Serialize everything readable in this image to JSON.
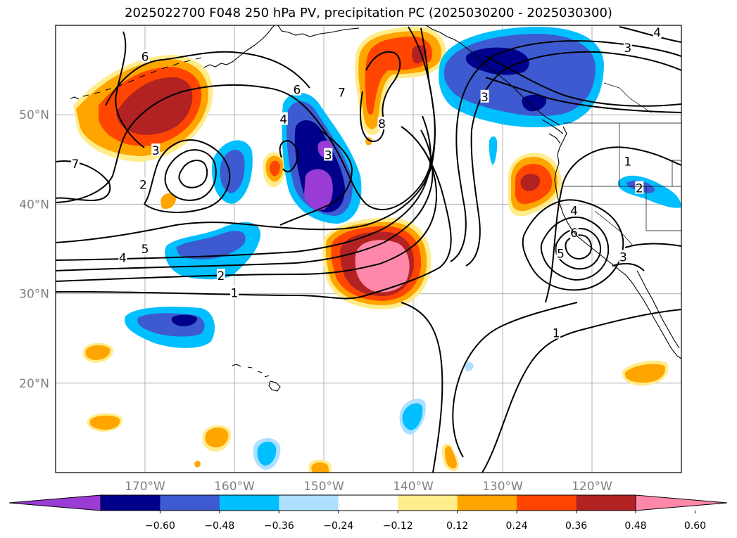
{
  "title": "2025022700 F048 250 hPa PV, precipitation PC (2025030200 - 2025030300)",
  "map": {
    "extent": {
      "lon_min": -180,
      "lon_max": -110,
      "lat_min": 10,
      "lat_max": 60
    },
    "lon_ticks": [
      {
        "value": -170,
        "label": "170°W"
      },
      {
        "value": -160,
        "label": "160°W"
      },
      {
        "value": -150,
        "label": "150°W"
      },
      {
        "value": -140,
        "label": "140°W"
      },
      {
        "value": -130,
        "label": "130°W"
      },
      {
        "value": -120,
        "label": "120°W"
      }
    ],
    "lat_ticks": [
      {
        "value": 50,
        "label": "50°N"
      },
      {
        "value": 40,
        "label": "40°N"
      },
      {
        "value": 30,
        "label": "30°N"
      },
      {
        "value": 20,
        "label": "20°N"
      }
    ]
  },
  "colorbar": {
    "colors": [
      "#9a3bd6",
      "#00008b",
      "#3d5ad0",
      "#00bfff",
      "#aee0ff",
      "#ffffff",
      "#ffec8b",
      "#ffa500",
      "#ff4500",
      "#b22222",
      "#ff88aa"
    ],
    "labels": [
      "−0.60",
      "−0.48",
      "−0.36",
      "−0.24",
      "−0.12",
      "0.12",
      "0.24",
      "0.36",
      "0.48",
      "0.60"
    ]
  },
  "pv_contour_labels": [
    {
      "text": "6",
      "lon": -170.0,
      "lat": 56.5
    },
    {
      "text": "6",
      "lon": -153.0,
      "lat": 52.8
    },
    {
      "text": "7",
      "lon": -148.0,
      "lat": 52.5
    },
    {
      "text": "4",
      "lon": -154.5,
      "lat": 49.5
    },
    {
      "text": "3",
      "lon": -168.8,
      "lat": 46.0
    },
    {
      "text": "2",
      "lon": -170.2,
      "lat": 42.2
    },
    {
      "text": "7",
      "lon": -177.8,
      "lat": 44.5
    },
    {
      "text": "3",
      "lon": -149.5,
      "lat": 45.5
    },
    {
      "text": "8",
      "lon": -143.5,
      "lat": 49.0
    },
    {
      "text": "3",
      "lon": -132.0,
      "lat": 52.0
    },
    {
      "text": "3",
      "lon": -116.0,
      "lat": 57.5
    },
    {
      "text": "4",
      "lon": -112.7,
      "lat": 59.2
    },
    {
      "text": "1",
      "lon": -116.0,
      "lat": 44.8
    },
    {
      "text": "2",
      "lon": -114.7,
      "lat": 41.8
    },
    {
      "text": "4",
      "lon": -122.0,
      "lat": 39.3
    },
    {
      "text": "6",
      "lon": -122.0,
      "lat": 36.8
    },
    {
      "text": "5",
      "lon": -123.5,
      "lat": 34.5
    },
    {
      "text": "3",
      "lon": -116.5,
      "lat": 34.1
    },
    {
      "text": "1",
      "lon": -124.0,
      "lat": 25.6
    },
    {
      "text": "5",
      "lon": -170.0,
      "lat": 35.0
    },
    {
      "text": "4",
      "lon": -172.5,
      "lat": 34.0
    },
    {
      "text": "2",
      "lon": -161.5,
      "lat": 32.0
    },
    {
      "text": "1",
      "lon": -160.0,
      "lat": 30.1
    }
  ]
}
